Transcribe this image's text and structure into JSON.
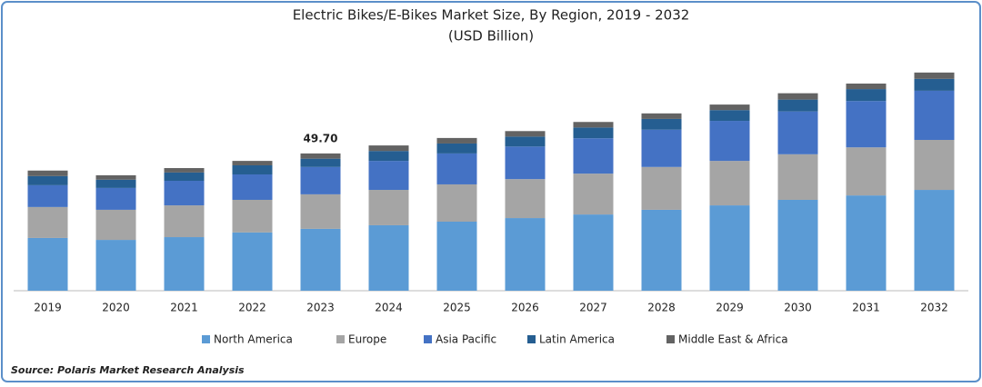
{
  "chart_data": {
    "type": "stacked_bar",
    "title": "Electric Bikes/E-Bikes Market Size, By Region, 2019 - 2032",
    "subtitle": "(USD Billion)",
    "categories": [
      "2019",
      "2020",
      "2021",
      "2022",
      "2023",
      "2024",
      "2025",
      "2026",
      "2027",
      "2028",
      "2029",
      "2030",
      "2031",
      "2032"
    ],
    "series": [
      {
        "name": "North America",
        "color": "#5b9bd5",
        "values": [
          19.1,
          18.4,
          19.4,
          21.1,
          22.4,
          23.7,
          25.0,
          26.3,
          27.6,
          29.3,
          30.9,
          32.9,
          34.5,
          36.5
        ]
      },
      {
        "name": "Europe",
        "color": "#a5a5a5",
        "values": [
          11.2,
          10.9,
          11.5,
          11.8,
          12.5,
          12.8,
          13.5,
          14.1,
          14.8,
          15.5,
          16.1,
          16.5,
          17.4,
          18.1
        ]
      },
      {
        "name": "Asia Pacific",
        "color": "#4472c4",
        "values": [
          7.9,
          7.9,
          8.9,
          9.2,
          9.9,
          10.5,
          11.2,
          11.8,
          12.8,
          13.5,
          14.5,
          15.5,
          16.8,
          17.8
        ]
      },
      {
        "name": "Latin America",
        "color": "#255e91",
        "values": [
          3.3,
          3.0,
          3.0,
          3.3,
          3.0,
          3.6,
          3.6,
          3.6,
          3.9,
          3.9,
          3.9,
          4.3,
          4.3,
          4.3
        ]
      },
      {
        "name": "Middle East & Africa",
        "color": "#636363",
        "values": [
          2.0,
          1.6,
          1.6,
          1.6,
          1.9,
          2.0,
          2.0,
          2.0,
          2.0,
          2.0,
          2.0,
          2.3,
          2.0,
          2.3
        ]
      }
    ],
    "annotations": [
      {
        "category": "2023",
        "label": "49.70"
      }
    ],
    "source": "Source: Polaris Market Research Analysis"
  }
}
